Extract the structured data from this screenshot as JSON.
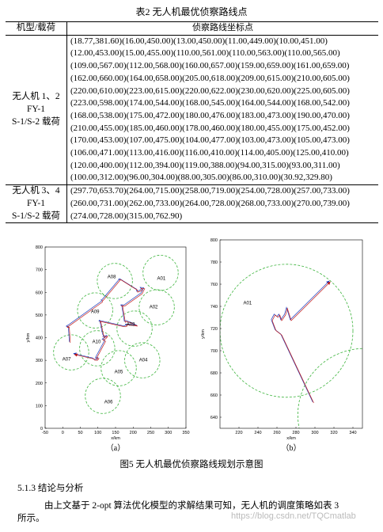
{
  "table": {
    "caption": "表2 无人机最优侦察路线点",
    "header": [
      "机型/载荷",
      "侦察路线坐标点"
    ],
    "rows": [
      {
        "label": [
          "无人机 1、2",
          "FY-1",
          "S-1/S-2 载荷"
        ],
        "points": [
          "(18.77,381.60)(16.00,450.00)(13.00,450.00)(11.00,449.00)(10.00,451.00)",
          "(12.00,453.00)(15.00,455.00)(110.00,561.00)(110.00,563.00)(110.00,565.00)",
          "(109.00,567.00)(112.00,568.00)(160.00,657.00)(159.00,659.00)(161.00,659.00)",
          "(162.00,660.00)(164.00,658.00)(205.00,618.00)(209.00,615.00)(210.00,605.00)",
          "(220.00,610.00)(223.00,615.00)(220.00,622.00)(230.00,620.00)(225.00,605.00)",
          "(223.00,598.00)(174.00,544.00)(168.00,545.00)(164.00,544.00)(168.00,542.00)",
          "(168.00,538.00)(175.00,472.00)(180.00,476.00)(183.00,473.00)(190.00,470.00)",
          "(210.00,455.00)(185.00,460.00)(178.00,460.00)(180.00,455.00)(175.00,452.00)",
          "(170.00,453.00)(107.00,475.00)(104.00,477.00)(103.00,473.00)(105.00,473.00)",
          "(106.00,471.00)(113.00,416.00)(116.00,410.00)(114.00,405.00)(125.00,410.00)",
          "(120.00,400.00)(112.00,394.00)(119.00,388.00)(94.00,315.00)(93.00,311.00)",
          "(100.00,312.00)(96.00,304.00)(88.00,305.00)(86.00,310.00)(30.92,329.80)"
        ]
      },
      {
        "label": [
          "无人机 3、4",
          "FY-1",
          "S-1/S-2 载荷"
        ],
        "points": [
          "(297.70,653.70)(264.00,715.00)(258.00,719.00)(254.00,728.00)(257.00,733.00)",
          "(260.00,731.00)(262.00,733.00)(264.00,728.00)(268.00,733.00)(270.00,739.00)",
          "(274.00,728.00)(315.00,762.90)"
        ]
      }
    ]
  },
  "figures": [
    {
      "panel": "（a）",
      "xlabel": "x/km",
      "ylabel": "y/km",
      "xlim": [
        -50,
        350
      ],
      "xticks": [
        -50,
        0,
        50,
        100,
        150,
        200,
        250,
        300,
        350
      ],
      "ylim": [
        0,
        800
      ],
      "yticks": [
        0,
        100,
        200,
        300,
        400,
        500,
        600,
        700,
        800
      ],
      "circle_radius": 50,
      "circles": [
        [
          278,
          686
        ],
        [
          148,
          650
        ],
        [
          267,
          534
        ],
        [
          92,
          520
        ],
        [
          204,
          440
        ],
        [
          98,
          353
        ],
        [
          226,
          300
        ],
        [
          159,
          265
        ],
        [
          24,
          335
        ],
        [
          114,
          143
        ]
      ],
      "targets": [
        {
          "label": "A01",
          "x": 280,
          "y": 660
        },
        {
          "label": "A02",
          "x": 258,
          "y": 534
        },
        {
          "label": "A03",
          "x": 193,
          "y": 458
        },
        {
          "label": "A04",
          "x": 229,
          "y": 300
        },
        {
          "label": "A05",
          "x": 159,
          "y": 248
        },
        {
          "label": "A06",
          "x": 130,
          "y": 115
        },
        {
          "label": "A07",
          "x": 11,
          "y": 304
        },
        {
          "label": "A08",
          "x": 139,
          "y": 667
        },
        {
          "label": "A09",
          "x": 92,
          "y": 514
        },
        {
          "label": "A10",
          "x": 96,
          "y": 381
        }
      ]
    },
    {
      "panel": "（b）",
      "xlabel": "x/km",
      "ylabel": "y/km",
      "xlim": [
        200,
        350
      ],
      "xticks": [
        220,
        240,
        260,
        280,
        300,
        320,
        340
      ],
      "ylim": [
        630,
        800
      ],
      "yticks": [
        640,
        660,
        680,
        700,
        720,
        740,
        760,
        780,
        800
      ],
      "circle_radius": 70,
      "circles": [
        [
          270,
          718
        ],
        [
          352,
          642
        ]
      ],
      "targets": [
        {
          "label": "A01",
          "x": 229,
          "y": 743
        }
      ]
    }
  ],
  "caption": "图5 无人机最优侦察路线规划示意图",
  "section": "5.1.3 结论与分析",
  "paragraph": [
    "由上文基于 2-opt 算法优化模型的求解结果可知，无人机的调度策略如表 3",
    "所示。"
  ],
  "watermark": "https://blog.csdn.net/TQCmatlab"
}
